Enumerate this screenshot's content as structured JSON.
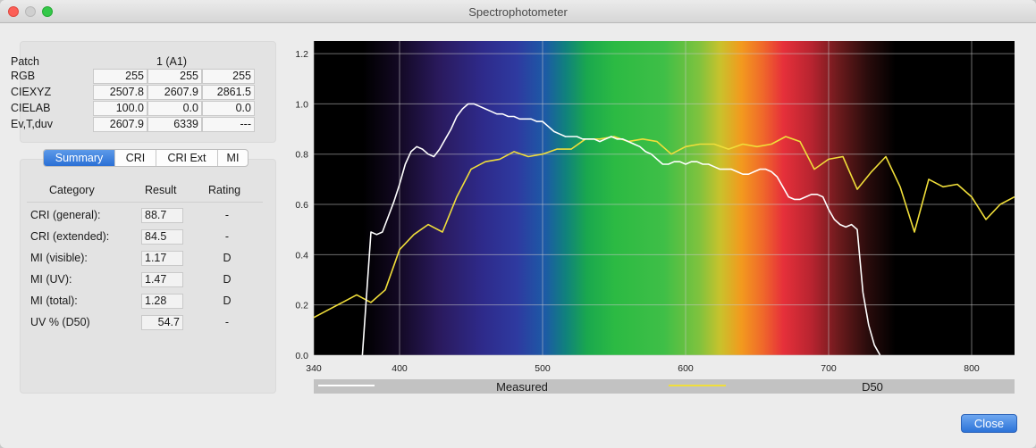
{
  "window": {
    "title": "Spectrophotometer"
  },
  "patch": {
    "label": "Patch",
    "value": "1  (A1)",
    "rows": [
      {
        "label": "RGB",
        "values": [
          "255",
          "255",
          "255"
        ]
      },
      {
        "label": "CIEXYZ",
        "values": [
          "2507.8",
          "2607.9",
          "2861.5"
        ]
      },
      {
        "label": "CIELAB",
        "values": [
          "100.0",
          "0.0",
          "0.0"
        ]
      },
      {
        "label": "Ev,T,duv",
        "values": [
          "2607.9",
          "6339",
          "---"
        ]
      }
    ]
  },
  "tabs": [
    {
      "label": "Summary",
      "active": true
    },
    {
      "label": "CRI",
      "active": false
    },
    {
      "label": "CRI Ext",
      "active": false
    },
    {
      "label": "MI",
      "active": false
    }
  ],
  "summary": {
    "headers": {
      "category": "Category",
      "result": "Result",
      "rating": "Rating"
    },
    "rows": [
      {
        "category": "CRI (general):",
        "result": "88.7",
        "rating": "-"
      },
      {
        "category": "CRI (extended):",
        "result": "84.5",
        "rating": "-"
      },
      {
        "category": "MI (visible):",
        "result": "1.17",
        "rating": "D"
      },
      {
        "category": "MI (UV):",
        "result": "1.47",
        "rating": "D"
      },
      {
        "category": "MI (total):",
        "result": "1.28",
        "rating": "D"
      },
      {
        "category": "UV % (D50)",
        "result": "54.7",
        "rating": "-"
      }
    ]
  },
  "buttons": {
    "close": "Close"
  },
  "chart_data": {
    "type": "line",
    "title": "",
    "xlabel": "",
    "ylabel": "",
    "xlim": [
      340,
      830
    ],
    "ylim": [
      0.0,
      1.25
    ],
    "xticks": [
      "340",
      "400",
      "500",
      "600",
      "700",
      "800"
    ],
    "yticks": [
      "0.0",
      "0.2",
      "0.4",
      "0.6",
      "0.8",
      "1.0",
      "1.2"
    ],
    "xtick_values": [
      340,
      400,
      500,
      600,
      700,
      800
    ],
    "ytick_values": [
      0.0,
      0.2,
      0.4,
      0.6,
      0.8,
      1.0,
      1.2
    ],
    "grid": true,
    "background": "visible-spectrum gradient",
    "legend_position": "bottom",
    "series": [
      {
        "name": "Measured",
        "color": "#ffffff",
        "x": [
          374,
          380,
          384,
          388,
          392,
          396,
          400,
          404,
          408,
          412,
          416,
          420,
          424,
          428,
          432,
          436,
          440,
          444,
          448,
          452,
          456,
          460,
          464,
          468,
          472,
          476,
          480,
          484,
          488,
          492,
          496,
          500,
          504,
          508,
          512,
          516,
          520,
          524,
          528,
          532,
          536,
          540,
          544,
          548,
          552,
          556,
          560,
          564,
          568,
          572,
          576,
          580,
          584,
          588,
          592,
          596,
          600,
          604,
          608,
          612,
          616,
          620,
          624,
          628,
          632,
          636,
          640,
          644,
          648,
          652,
          656,
          660,
          664,
          668,
          672,
          676,
          680,
          684,
          688,
          692,
          696,
          700,
          704,
          708,
          712,
          716,
          720,
          724,
          728,
          732,
          736
        ],
        "y": [
          0.0,
          0.49,
          0.48,
          0.49,
          0.55,
          0.61,
          0.68,
          0.76,
          0.81,
          0.83,
          0.82,
          0.8,
          0.79,
          0.82,
          0.86,
          0.9,
          0.95,
          0.98,
          1.0,
          1.0,
          0.99,
          0.98,
          0.97,
          0.96,
          0.96,
          0.95,
          0.95,
          0.94,
          0.94,
          0.94,
          0.93,
          0.93,
          0.91,
          0.89,
          0.88,
          0.87,
          0.87,
          0.87,
          0.86,
          0.86,
          0.86,
          0.85,
          0.86,
          0.87,
          0.86,
          0.86,
          0.85,
          0.84,
          0.83,
          0.81,
          0.8,
          0.78,
          0.76,
          0.76,
          0.77,
          0.77,
          0.76,
          0.77,
          0.77,
          0.76,
          0.76,
          0.75,
          0.74,
          0.74,
          0.74,
          0.73,
          0.72,
          0.72,
          0.73,
          0.74,
          0.74,
          0.73,
          0.71,
          0.67,
          0.63,
          0.62,
          0.62,
          0.63,
          0.64,
          0.64,
          0.63,
          0.58,
          0.54,
          0.52,
          0.51,
          0.52,
          0.5,
          0.25,
          0.12,
          0.04,
          0.0
        ]
      },
      {
        "name": "D50",
        "color": "#f0de3a",
        "x": [
          340,
          350,
          360,
          370,
          380,
          390,
          400,
          410,
          420,
          430,
          440,
          450,
          460,
          470,
          480,
          490,
          500,
          510,
          520,
          530,
          540,
          550,
          560,
          570,
          580,
          590,
          600,
          610,
          620,
          630,
          640,
          650,
          660,
          670,
          680,
          690,
          700,
          710,
          720,
          730,
          740,
          750,
          760,
          770,
          780,
          790,
          800,
          810,
          820,
          830
        ],
        "y": [
          0.15,
          0.18,
          0.21,
          0.24,
          0.21,
          0.26,
          0.42,
          0.48,
          0.52,
          0.49,
          0.63,
          0.74,
          0.77,
          0.78,
          0.81,
          0.79,
          0.8,
          0.82,
          0.82,
          0.86,
          0.86,
          0.87,
          0.85,
          0.86,
          0.85,
          0.8,
          0.83,
          0.84,
          0.84,
          0.82,
          0.84,
          0.83,
          0.84,
          0.87,
          0.85,
          0.74,
          0.78,
          0.79,
          0.66,
          0.73,
          0.79,
          0.67,
          0.49,
          0.7,
          0.67,
          0.68,
          0.63,
          0.54,
          0.6,
          0.63
        ]
      }
    ]
  }
}
